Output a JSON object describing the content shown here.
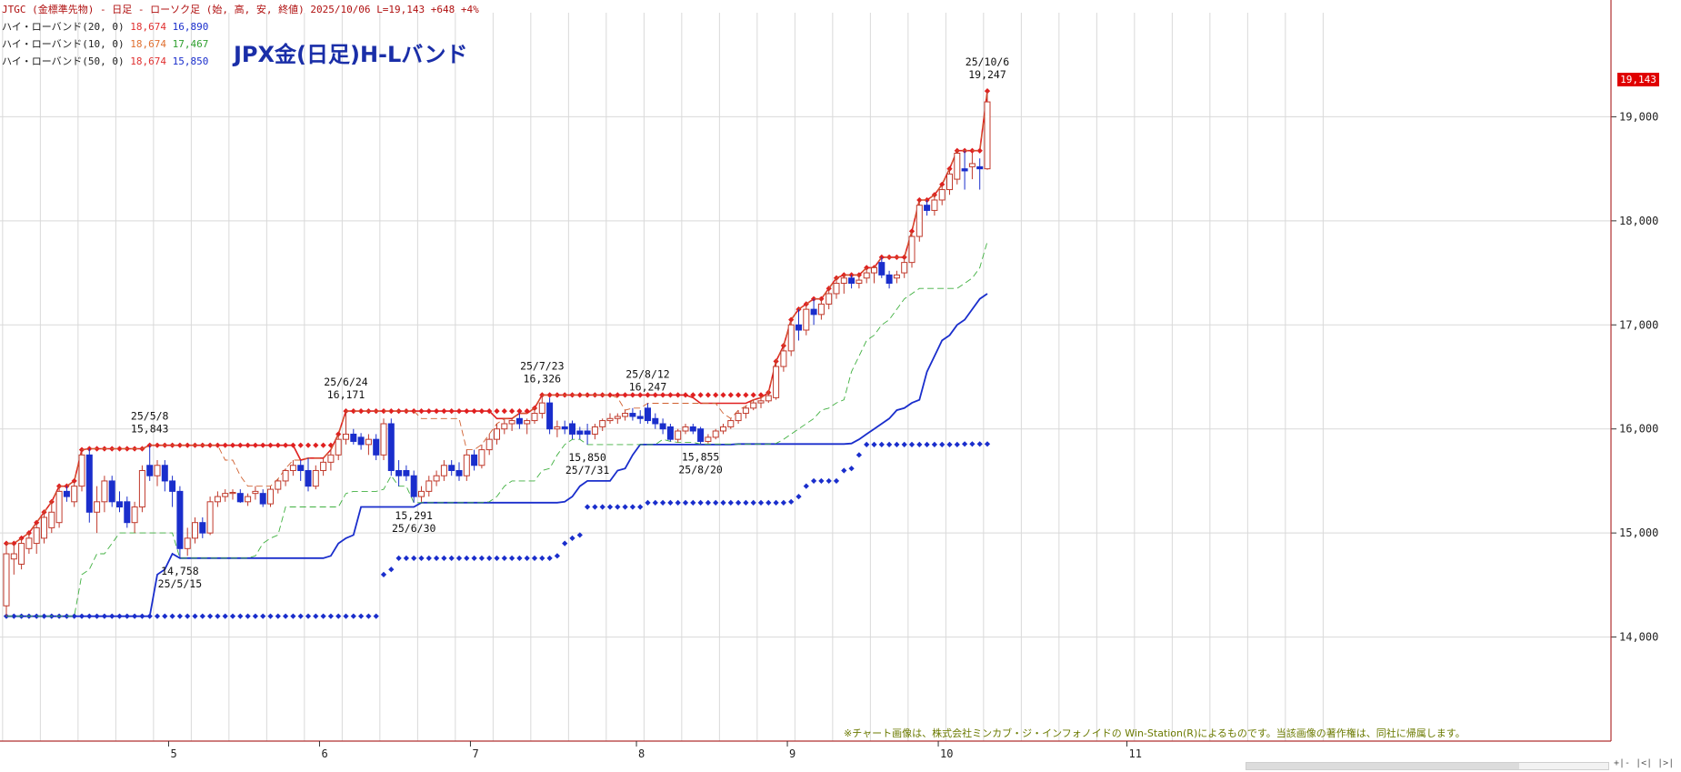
{
  "header": {
    "symbol_line": "JTGC (金標準先物) - 日足 - ローソク足 (始, 高, 安, 終値)",
    "date": "2025/10/06",
    "last": "L=19,143",
    "change": "+648",
    "pct": "+4%"
  },
  "legend": [
    {
      "label": "ハイ・ローバンド(20, 0)",
      "high": "18,674",
      "low": "16,890",
      "high_color": "#e03030",
      "low_color": "#1a2ecc"
    },
    {
      "label": "ハイ・ローバンド(10, 0)",
      "high": "18,674",
      "low": "17,467",
      "high_color": "#e07030",
      "low_color": "#30a030"
    },
    {
      "label": "ハイ・ローバンド(50, 0)",
      "high": "18,674",
      "low": "15,850",
      "high_color": "#e03030",
      "low_color": "#1a2ecc"
    }
  ],
  "big_title": "JPX金(日足)H-Lバンド",
  "copyright": "※チャート画像は、株式会社ミンカブ・ジ・インフォノイドの Win-Station(R)によるものです。当該画像の著作権は、同社に帰属します。",
  "price_tag": "19,143",
  "corner_buttons": "+|- |<| |>| |+",
  "chart_data": {
    "type": "candlestick",
    "y_axis": {
      "min": 13000,
      "max": 20000,
      "ticks": [
        "14,000",
        "15,000",
        "16,000",
        "17,000",
        "18,000",
        "19,000"
      ]
    },
    "x_month_labels": [
      {
        "label": "5",
        "bar": 22
      },
      {
        "label": "6",
        "bar": 42
      },
      {
        "label": "7",
        "bar": 62
      },
      {
        "label": "8",
        "bar": 84
      },
      {
        "label": "9",
        "bar": 104
      },
      {
        "label": "10",
        "bar": 124
      },
      {
        "label": "11",
        "bar": 149
      }
    ],
    "ohlc": [
      {
        "o": 14300,
        "h": 14900,
        "l": 14200,
        "c": 14800
      },
      {
        "o": 14750,
        "h": 14900,
        "l": 14600,
        "c": 14800
      },
      {
        "o": 14700,
        "h": 14950,
        "l": 14650,
        "c": 14900
      },
      {
        "o": 14850,
        "h": 15000,
        "l": 14800,
        "c": 14950
      },
      {
        "o": 14900,
        "h": 15100,
        "l": 14800,
        "c": 15050
      },
      {
        "o": 14950,
        "h": 15200,
        "l": 14900,
        "c": 15150
      },
      {
        "o": 15050,
        "h": 15300,
        "l": 15000,
        "c": 15200
      },
      {
        "o": 15100,
        "h": 15450,
        "l": 15050,
        "c": 15400
      },
      {
        "o": 15400,
        "h": 15450,
        "l": 15300,
        "c": 15350
      },
      {
        "o": 15300,
        "h": 15500,
        "l": 15250,
        "c": 15450
      },
      {
        "o": 15450,
        "h": 15800,
        "l": 15400,
        "c": 15750
      },
      {
        "o": 15750,
        "h": 15810,
        "l": 15100,
        "c": 15200
      },
      {
        "o": 15200,
        "h": 15450,
        "l": 15000,
        "c": 15300
      },
      {
        "o": 15300,
        "h": 15550,
        "l": 15200,
        "c": 15500
      },
      {
        "o": 15500,
        "h": 15550,
        "l": 15250,
        "c": 15300
      },
      {
        "o": 15300,
        "h": 15400,
        "l": 15200,
        "c": 15250
      },
      {
        "o": 15300,
        "h": 15350,
        "l": 15050,
        "c": 15100
      },
      {
        "o": 15100,
        "h": 15300,
        "l": 15000,
        "c": 15250
      },
      {
        "o": 15250,
        "h": 15650,
        "l": 15200,
        "c": 15600
      },
      {
        "o": 15650,
        "h": 15843,
        "l": 15500,
        "c": 15550
      },
      {
        "o": 15550,
        "h": 15700,
        "l": 15450,
        "c": 15650
      },
      {
        "o": 15650,
        "h": 15700,
        "l": 15400,
        "c": 15500
      },
      {
        "o": 15500,
        "h": 15550,
        "l": 15250,
        "c": 15400
      },
      {
        "o": 15400,
        "h": 15450,
        "l": 14758,
        "c": 14850
      },
      {
        "o": 14850,
        "h": 15050,
        "l": 14780,
        "c": 14950
      },
      {
        "o": 14950,
        "h": 15150,
        "l": 14900,
        "c": 15100
      },
      {
        "o": 15100,
        "h": 15150,
        "l": 14950,
        "c": 15000
      },
      {
        "o": 15000,
        "h": 15350,
        "l": 14980,
        "c": 15300
      },
      {
        "o": 15300,
        "h": 15400,
        "l": 15250,
        "c": 15350
      },
      {
        "o": 15350,
        "h": 15420,
        "l": 15300,
        "c": 15380
      },
      {
        "o": 15380,
        "h": 15420,
        "l": 15320,
        "c": 15390
      },
      {
        "o": 15380,
        "h": 15420,
        "l": 15290,
        "c": 15300
      },
      {
        "o": 15300,
        "h": 15380,
        "l": 15260,
        "c": 15350
      },
      {
        "o": 15380,
        "h": 15450,
        "l": 15320,
        "c": 15400
      },
      {
        "o": 15380,
        "h": 15420,
        "l": 15250,
        "c": 15280
      },
      {
        "o": 15280,
        "h": 15450,
        "l": 15250,
        "c": 15420
      },
      {
        "o": 15420,
        "h": 15520,
        "l": 15380,
        "c": 15500
      },
      {
        "o": 15500,
        "h": 15620,
        "l": 15450,
        "c": 15600
      },
      {
        "o": 15600,
        "h": 15700,
        "l": 15550,
        "c": 15650
      },
      {
        "o": 15650,
        "h": 15700,
        "l": 15500,
        "c": 15600
      },
      {
        "o": 15600,
        "h": 15720,
        "l": 15400,
        "c": 15450
      },
      {
        "o": 15450,
        "h": 15650,
        "l": 15420,
        "c": 15600
      },
      {
        "o": 15600,
        "h": 15720,
        "l": 15550,
        "c": 15680
      },
      {
        "o": 15680,
        "h": 15800,
        "l": 15600,
        "c": 15750
      },
      {
        "o": 15750,
        "h": 15950,
        "l": 15700,
        "c": 15900
      },
      {
        "o": 15900,
        "h": 16171,
        "l": 15850,
        "c": 15950
      },
      {
        "o": 15950,
        "h": 16000,
        "l": 15850,
        "c": 15880
      },
      {
        "o": 15920,
        "h": 15960,
        "l": 15800,
        "c": 15850
      },
      {
        "o": 15850,
        "h": 15950,
        "l": 15750,
        "c": 15900
      },
      {
        "o": 15900,
        "h": 15950,
        "l": 15700,
        "c": 15750
      },
      {
        "o": 15750,
        "h": 16100,
        "l": 15700,
        "c": 16050
      },
      {
        "o": 16050,
        "h": 16100,
        "l": 15550,
        "c": 15600
      },
      {
        "o": 15600,
        "h": 15700,
        "l": 15450,
        "c": 15550
      },
      {
        "o": 15600,
        "h": 15650,
        "l": 15500,
        "c": 15550
      },
      {
        "o": 15550,
        "h": 15600,
        "l": 15291,
        "c": 15350
      },
      {
        "o": 15350,
        "h": 15450,
        "l": 15300,
        "c": 15400
      },
      {
        "o": 15400,
        "h": 15550,
        "l": 15350,
        "c": 15500
      },
      {
        "o": 15500,
        "h": 15600,
        "l": 15450,
        "c": 15550
      },
      {
        "o": 15550,
        "h": 15700,
        "l": 15500,
        "c": 15650
      },
      {
        "o": 15650,
        "h": 15700,
        "l": 15550,
        "c": 15600
      },
      {
        "o": 15600,
        "h": 15680,
        "l": 15500,
        "c": 15550
      },
      {
        "o": 15550,
        "h": 15800,
        "l": 15500,
        "c": 15750
      },
      {
        "o": 15750,
        "h": 15800,
        "l": 15600,
        "c": 15650
      },
      {
        "o": 15650,
        "h": 15850,
        "l": 15620,
        "c": 15800
      },
      {
        "o": 15800,
        "h": 15950,
        "l": 15750,
        "c": 15900
      },
      {
        "o": 15900,
        "h": 16050,
        "l": 15850,
        "c": 16000
      },
      {
        "o": 16000,
        "h": 16100,
        "l": 15950,
        "c": 16050
      },
      {
        "o": 16050,
        "h": 16100,
        "l": 15980,
        "c": 16080
      },
      {
        "o": 16100,
        "h": 16150,
        "l": 16000,
        "c": 16050
      },
      {
        "o": 16050,
        "h": 16100,
        "l": 15950,
        "c": 16080
      },
      {
        "o": 16080,
        "h": 16200,
        "l": 16050,
        "c": 16150
      },
      {
        "o": 16150,
        "h": 16326,
        "l": 16100,
        "c": 16250
      },
      {
        "o": 16250,
        "h": 16300,
        "l": 15950,
        "c": 16000
      },
      {
        "o": 16000,
        "h": 16080,
        "l": 15920,
        "c": 16020
      },
      {
        "o": 16020,
        "h": 16080,
        "l": 15950,
        "c": 16000
      },
      {
        "o": 16050,
        "h": 16080,
        "l": 15900,
        "c": 15950
      },
      {
        "o": 15980,
        "h": 16020,
        "l": 15900,
        "c": 15950
      },
      {
        "o": 15980,
        "h": 16050,
        "l": 15850,
        "c": 15950
      },
      {
        "o": 15950,
        "h": 16050,
        "l": 15900,
        "c": 16020
      },
      {
        "o": 16020,
        "h": 16100,
        "l": 15980,
        "c": 16080
      },
      {
        "o": 16080,
        "h": 16150,
        "l": 16050,
        "c": 16100
      },
      {
        "o": 16100,
        "h": 16150,
        "l": 16050,
        "c": 16120
      },
      {
        "o": 16120,
        "h": 16180,
        "l": 16080,
        "c": 16150
      },
      {
        "o": 16150,
        "h": 16200,
        "l": 16080,
        "c": 16120
      },
      {
        "o": 16120,
        "h": 16180,
        "l": 16050,
        "c": 16100
      },
      {
        "o": 16200,
        "h": 16247,
        "l": 16050,
        "c": 16080
      },
      {
        "o": 16100,
        "h": 16150,
        "l": 16000,
        "c": 16050
      },
      {
        "o": 16050,
        "h": 16100,
        "l": 15950,
        "c": 16000
      },
      {
        "o": 16020,
        "h": 16050,
        "l": 15880,
        "c": 15900
      },
      {
        "o": 15900,
        "h": 16000,
        "l": 15870,
        "c": 15980
      },
      {
        "o": 15980,
        "h": 16050,
        "l": 15950,
        "c": 16020
      },
      {
        "o": 16020,
        "h": 16050,
        "l": 15950,
        "c": 15980
      },
      {
        "o": 16000,
        "h": 16020,
        "l": 15855,
        "c": 15880
      },
      {
        "o": 15880,
        "h": 15950,
        "l": 15860,
        "c": 15920
      },
      {
        "o": 15920,
        "h": 16000,
        "l": 15900,
        "c": 15980
      },
      {
        "o": 15980,
        "h": 16050,
        "l": 15950,
        "c": 16020
      },
      {
        "o": 16020,
        "h": 16100,
        "l": 16000,
        "c": 16080
      },
      {
        "o": 16080,
        "h": 16180,
        "l": 16050,
        "c": 16150
      },
      {
        "o": 16150,
        "h": 16220,
        "l": 16100,
        "c": 16200
      },
      {
        "o": 16200,
        "h": 16280,
        "l": 16180,
        "c": 16250
      },
      {
        "o": 16250,
        "h": 16300,
        "l": 16200,
        "c": 16270
      },
      {
        "o": 16270,
        "h": 16350,
        "l": 16250,
        "c": 16320
      },
      {
        "o": 16300,
        "h": 16650,
        "l": 16280,
        "c": 16600
      },
      {
        "o": 16600,
        "h": 16800,
        "l": 16550,
        "c": 16750
      },
      {
        "o": 16750,
        "h": 17050,
        "l": 16700,
        "c": 17000
      },
      {
        "o": 17000,
        "h": 17150,
        "l": 16850,
        "c": 16950
      },
      {
        "o": 16950,
        "h": 17200,
        "l": 16900,
        "c": 17150
      },
      {
        "o": 17150,
        "h": 17250,
        "l": 17000,
        "c": 17100
      },
      {
        "o": 17100,
        "h": 17250,
        "l": 17050,
        "c": 17200
      },
      {
        "o": 17200,
        "h": 17350,
        "l": 17150,
        "c": 17300
      },
      {
        "o": 17300,
        "h": 17450,
        "l": 17250,
        "c": 17400
      },
      {
        "o": 17400,
        "h": 17480,
        "l": 17300,
        "c": 17450
      },
      {
        "o": 17450,
        "h": 17480,
        "l": 17350,
        "c": 17400
      },
      {
        "o": 17400,
        "h": 17480,
        "l": 17350,
        "c": 17430
      },
      {
        "o": 17450,
        "h": 17550,
        "l": 17400,
        "c": 17500
      },
      {
        "o": 17500,
        "h": 17550,
        "l": 17400,
        "c": 17550
      },
      {
        "o": 17600,
        "h": 17650,
        "l": 17450,
        "c": 17480
      },
      {
        "o": 17480,
        "h": 17520,
        "l": 17350,
        "c": 17400
      },
      {
        "o": 17450,
        "h": 17520,
        "l": 17400,
        "c": 17480
      },
      {
        "o": 17500,
        "h": 17650,
        "l": 17450,
        "c": 17600
      },
      {
        "o": 17600,
        "h": 17900,
        "l": 17550,
        "c": 17850
      },
      {
        "o": 17850,
        "h": 18200,
        "l": 17800,
        "c": 18150
      },
      {
        "o": 18150,
        "h": 18200,
        "l": 18050,
        "c": 18100
      },
      {
        "o": 18100,
        "h": 18250,
        "l": 18050,
        "c": 18200
      },
      {
        "o": 18200,
        "h": 18350,
        "l": 18150,
        "c": 18300
      },
      {
        "o": 18300,
        "h": 18500,
        "l": 18250,
        "c": 18450
      },
      {
        "o": 18400,
        "h": 18674,
        "l": 18350,
        "c": 18650
      },
      {
        "o": 18500,
        "h": 18674,
        "l": 18300,
        "c": 18480
      },
      {
        "o": 18520,
        "h": 18650,
        "l": 18400,
        "c": 18550
      },
      {
        "o": 18520,
        "h": 18600,
        "l": 18300,
        "c": 18500
      },
      {
        "o": 18500,
        "h": 19247,
        "l": 18490,
        "c": 19143
      }
    ],
    "annotations": [
      {
        "bar": 19,
        "date": "25/5/8",
        "value": "15,843",
        "pos": "above"
      },
      {
        "bar": 23,
        "date": "25/5/15",
        "value": "14,758",
        "pos": "below"
      },
      {
        "bar": 45,
        "date": "25/6/24",
        "value": "16,171",
        "pos": "above"
      },
      {
        "bar": 54,
        "date": "25/6/30",
        "value": "15,291",
        "pos": "below"
      },
      {
        "bar": 71,
        "date": "25/7/23",
        "value": "16,326",
        "pos": "above"
      },
      {
        "bar": 77,
        "date": "25/7/31",
        "value": "15,850",
        "pos": "below"
      },
      {
        "bar": 85,
        "date": "25/8/12",
        "value": "16,247",
        "pos": "above"
      },
      {
        "bar": 92,
        "date": "25/8/20",
        "value": "15,855",
        "pos": "below"
      },
      {
        "bar": 130,
        "date": "25/10/6",
        "value": "19,247",
        "pos": "above"
      }
    ],
    "bands": [
      {
        "name": "ハイ・ローバンド(20, 0)",
        "period": 20,
        "high_color": "#e02020",
        "low_color": "#1a2ecc",
        "style": "line"
      },
      {
        "name": "ハイ・ローバンド(10, 0)",
        "period": 10,
        "high_color": "#d06030",
        "low_color": "#40b040",
        "style": "dashed"
      },
      {
        "name": "ハイ・ローバンド(50, 0)",
        "period": 50,
        "high_color": "#e02020",
        "low_color": "#1a2ecc",
        "style": "dots"
      }
    ],
    "colors": {
      "up": "#c0392b",
      "down": "#1a2ecc",
      "grid": "#d9d9d9"
    }
  }
}
